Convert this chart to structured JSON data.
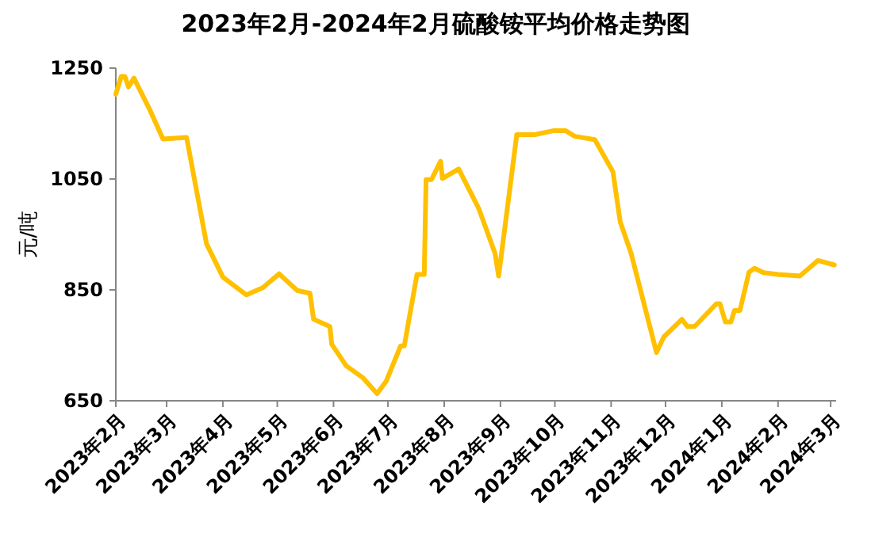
{
  "chart_data": {
    "type": "line",
    "title": "2023年2月-2024年2月硫酸铵平均价格走势图",
    "ylabel": "元/吨",
    "x": [
      "2023-02-01",
      "2023-02-04",
      "2023-02-06",
      "2023-02-08",
      "2023-02-11",
      "2023-02-20",
      "2023-02-27",
      "2023-03-12",
      "2023-03-23",
      "2023-04-01",
      "2023-04-14",
      "2023-04-23",
      "2023-05-02",
      "2023-05-12",
      "2023-05-19",
      "2023-05-21",
      "2023-05-30",
      "2023-05-31",
      "2023-06-08",
      "2023-06-17",
      "2023-06-25",
      "2023-06-30",
      "2023-07-08",
      "2023-07-10",
      "2023-07-17",
      "2023-07-21",
      "2023-07-22",
      "2023-07-25",
      "2023-07-30",
      "2023-07-31",
      "2023-08-09",
      "2023-08-20",
      "2023-08-29",
      "2023-08-31",
      "2023-09-10",
      "2023-09-20",
      "2023-09-30",
      "2023-10-07",
      "2023-10-12",
      "2023-10-23",
      "2023-11-02",
      "2023-11-06",
      "2023-11-12",
      "2023-11-26",
      "2023-11-30",
      "2023-12-10",
      "2023-12-13",
      "2023-12-17",
      "2023-12-29",
      "2023-12-31",
      "2024-01-03",
      "2024-01-06",
      "2024-01-08",
      "2024-01-11",
      "2024-01-16",
      "2024-01-19",
      "2024-01-24",
      "2024-02-01",
      "2024-02-13",
      "2024-02-23",
      "2024-03-03"
    ],
    "series": [
      {
        "color": "#ffc000",
        "values": [
          1203,
          1235,
          1235,
          1216,
          1232,
          1173,
          1122,
          1125,
          933,
          873,
          841,
          854,
          879,
          849,
          844,
          797,
          784,
          752,
          713,
          692,
          663,
          685,
          749,
          749,
          878,
          878,
          1049,
          1049,
          1082,
          1051,
          1068,
          997,
          916,
          875,
          1130,
          1130,
          1137,
          1137,
          1127,
          1121,
          1063,
          973,
          916,
          737,
          765,
          797,
          784,
          784,
          825,
          825,
          792,
          792,
          813,
          813,
          882,
          889,
          881,
          878,
          875,
          903,
          895
        ]
      }
    ],
    "xlim": [
      "2023-02-01",
      "2024-03-04"
    ],
    "xticks": [
      {
        "value": "2023-02-01",
        "label": "2023年2月"
      },
      {
        "value": "2023-03-01",
        "label": "2023年3月"
      },
      {
        "value": "2023-04-01",
        "label": "2023年4月"
      },
      {
        "value": "2023-05-01",
        "label": "2023年5月"
      },
      {
        "value": "2023-06-01",
        "label": "2023年6月"
      },
      {
        "value": "2023-07-01",
        "label": "2023年7月"
      },
      {
        "value": "2023-08-01",
        "label": "2023年8月"
      },
      {
        "value": "2023-09-01",
        "label": "2023年9月"
      },
      {
        "value": "2023-10-01",
        "label": "2023年10月"
      },
      {
        "value": "2023-11-01",
        "label": "2023年11月"
      },
      {
        "value": "2023-12-01",
        "label": "2023年12月"
      },
      {
        "value": "2024-01-01",
        "label": "2024年1月"
      },
      {
        "value": "2024-02-01",
        "label": "2024年2月"
      },
      {
        "value": "2024-03-01",
        "label": "2024年3月"
      }
    ],
    "ylim": [
      650,
      1250
    ],
    "yticks": [
      650,
      850,
      1050,
      1250
    ],
    "grid": false,
    "marker": "none",
    "line_style": "solid"
  }
}
